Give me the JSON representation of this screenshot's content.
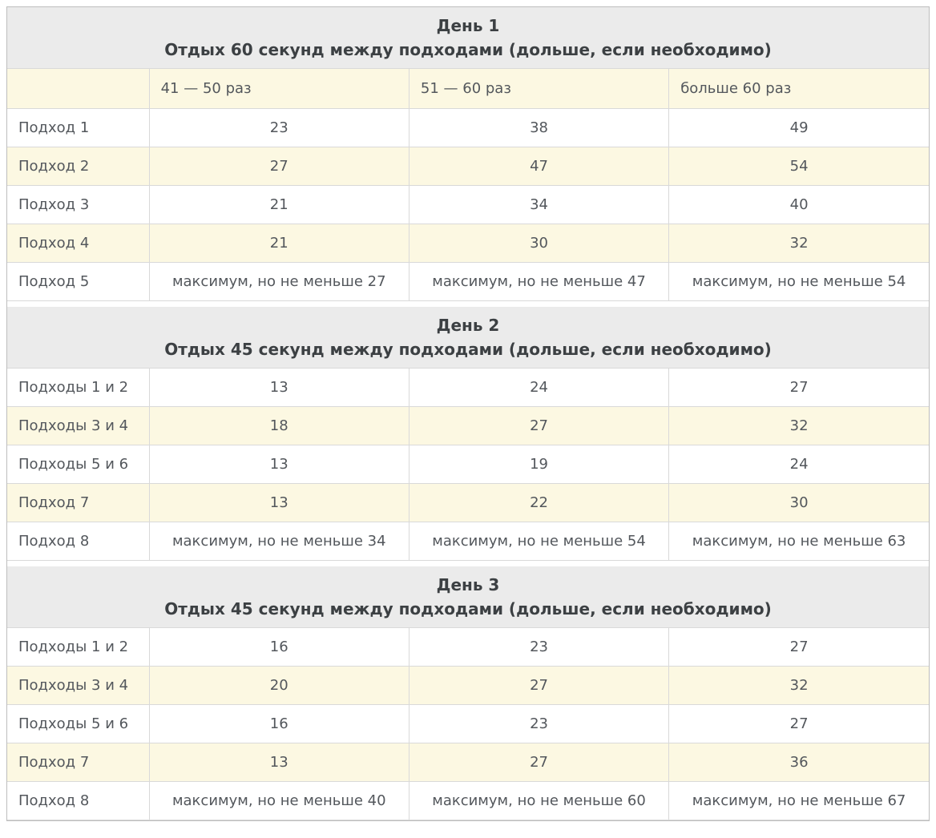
{
  "table": {
    "column_headers": [
      "41 — 50 раз",
      "51 — 60 раз",
      "больше 60 раз"
    ],
    "sections": [
      {
        "title": "День 1",
        "subtitle": "Отдых 60 секунд между подходами (дольше, если необходимо)",
        "has_column_header": true,
        "rows": [
          {
            "label": "Подход 1",
            "values": [
              "23",
              "38",
              "49"
            ]
          },
          {
            "label": "Подход 2",
            "values": [
              "27",
              "47",
              "54"
            ]
          },
          {
            "label": "Подход 3",
            "values": [
              "21",
              "34",
              "40"
            ]
          },
          {
            "label": "Подход 4",
            "values": [
              "21",
              "30",
              "32"
            ]
          },
          {
            "label": "Подход 5",
            "values": [
              "максимум, но не меньше 27",
              "максимум, но не меньше 47",
              "максимум, но не меньше 54"
            ]
          }
        ]
      },
      {
        "title": "День 2",
        "subtitle": "Отдых 45 секунд между подходами (дольше, если необходимо)",
        "has_column_header": false,
        "rows": [
          {
            "label": "Подходы 1 и 2",
            "values": [
              "13",
              "24",
              "27"
            ]
          },
          {
            "label": "Подходы 3 и 4",
            "values": [
              "18",
              "27",
              "32"
            ]
          },
          {
            "label": "Подходы 5 и 6",
            "values": [
              "13",
              "19",
              "24"
            ]
          },
          {
            "label": "Подход 7",
            "values": [
              "13",
              "22",
              "30"
            ]
          },
          {
            "label": "Подход 8",
            "values": [
              "максимум, но не меньше 34",
              "максимум, но не меньше 54",
              "максимум, но не меньше 63"
            ]
          }
        ]
      },
      {
        "title": "День 3",
        "subtitle": "Отдых 45 секунд между подходами (дольше, если необходимо)",
        "has_column_header": false,
        "rows": [
          {
            "label": "Подходы 1 и 2",
            "values": [
              "16",
              "23",
              "27"
            ]
          },
          {
            "label": "Подходы 3 и 4",
            "values": [
              "20",
              "27",
              "32"
            ]
          },
          {
            "label": "Подходы 5 и 6",
            "values": [
              "16",
              "23",
              "27"
            ]
          },
          {
            "label": "Подход 7",
            "values": [
              "13",
              "27",
              "36"
            ]
          },
          {
            "label": "Подход 8",
            "values": [
              "максимум, но не меньше 40",
              "максимум, но не меньше 60",
              "максимум, но не меньше 67"
            ]
          }
        ]
      }
    ],
    "colors": {
      "section_header_background": "#ebebeb",
      "stripe_background": "#fcf8e2",
      "row_background": "#ffffff",
      "border_inner": "#d9d9d9",
      "border_outer": "#bdbdbd",
      "text": "#53575c",
      "heading_text": "#3c4043"
    }
  }
}
